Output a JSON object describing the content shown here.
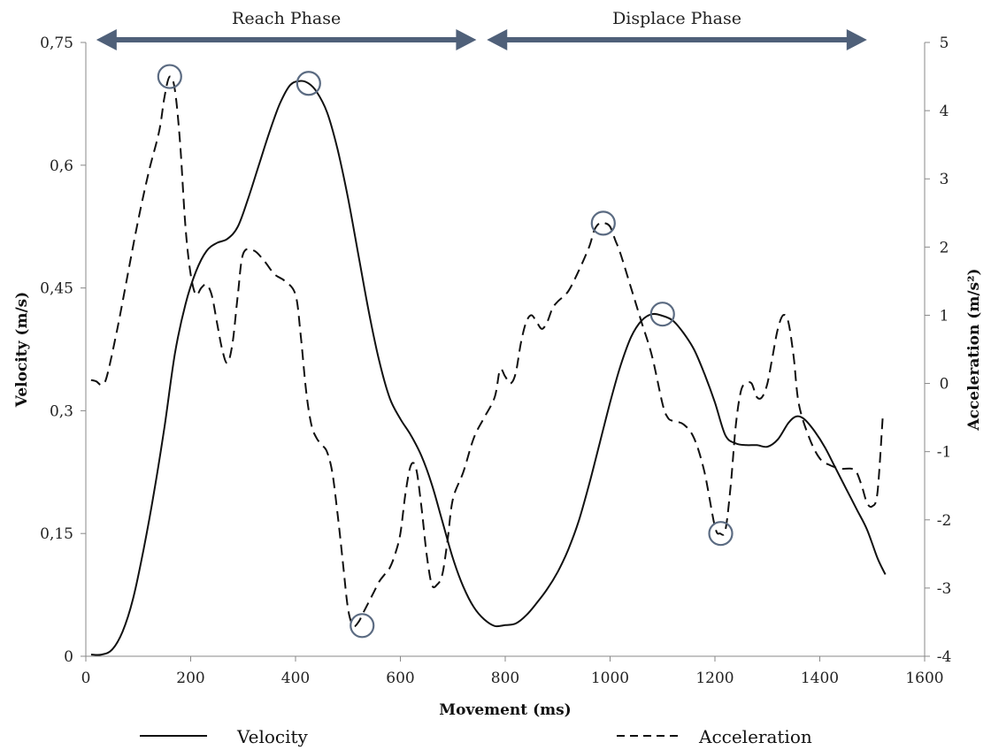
{
  "chart_data": {
    "type": "line",
    "xlabel": "Movement (ms)",
    "ylabel_left": "Velocity (m/s)",
    "ylabel_right": "Acceleration (m/s²)",
    "xlim": [
      0,
      1600
    ],
    "ylim_left": [
      0,
      0.75
    ],
    "ylim_right": [
      -4,
      5
    ],
    "x_ticks": [
      0,
      200,
      400,
      600,
      800,
      1000,
      1200,
      1400,
      1600
    ],
    "x_tick_labels": [
      "0",
      "200",
      "400",
      "600",
      "800",
      "1000",
      "1200",
      "1400",
      "1600"
    ],
    "y_left_ticks": [
      0,
      0.15,
      0.3,
      0.45,
      0.6,
      0.75
    ],
    "y_left_tick_labels": [
      "0",
      "0,15",
      "0,3",
      "0,45",
      "0,6",
      "0,75"
    ],
    "y_right_ticks": [
      -4,
      -3,
      -2,
      -1,
      0,
      1,
      2,
      3,
      4,
      5
    ],
    "y_right_tick_labels": [
      "-4",
      "-3",
      "-2",
      "-1",
      "0",
      "1",
      "2",
      "3",
      "4",
      "5"
    ],
    "grid": false,
    "legend_position": "bottom",
    "phases": [
      {
        "label": "Reach Phase",
        "x_start": 20,
        "x_end": 745
      },
      {
        "label": "Displace Phase",
        "x_start": 765,
        "x_end": 1490
      }
    ],
    "arrow_color": "#4f6079",
    "marker_color": "#5b6b82",
    "series": [
      {
        "name": "Velocity",
        "axis": "left",
        "style": "solid",
        "x": [
          10,
          30,
          50,
          70,
          90,
          110,
          130,
          150,
          170,
          190,
          210,
          230,
          250,
          270,
          290,
          310,
          330,
          350,
          370,
          390,
          410,
          425,
          440,
          460,
          480,
          500,
          520,
          540,
          560,
          580,
          600,
          620,
          640,
          660,
          680,
          700,
          720,
          740,
          760,
          780,
          800,
          820,
          840,
          860,
          880,
          900,
          920,
          940,
          960,
          980,
          1000,
          1020,
          1040,
          1060,
          1080,
          1100,
          1120,
          1140,
          1160,
          1180,
          1200,
          1220,
          1240,
          1260,
          1280,
          1300,
          1320,
          1340,
          1355,
          1370,
          1390,
          1410,
          1430,
          1450,
          1470,
          1490,
          1510,
          1525
        ],
        "values": [
          0.002,
          0.002,
          0.008,
          0.03,
          0.07,
          0.13,
          0.2,
          0.28,
          0.37,
          0.43,
          0.47,
          0.495,
          0.505,
          0.51,
          0.525,
          0.56,
          0.6,
          0.64,
          0.675,
          0.698,
          0.703,
          0.7,
          0.69,
          0.665,
          0.62,
          0.56,
          0.49,
          0.42,
          0.36,
          0.315,
          0.29,
          0.27,
          0.245,
          0.21,
          0.165,
          0.12,
          0.085,
          0.06,
          0.045,
          0.037,
          0.038,
          0.04,
          0.05,
          0.065,
          0.082,
          0.103,
          0.13,
          0.165,
          0.21,
          0.26,
          0.31,
          0.355,
          0.39,
          0.41,
          0.418,
          0.416,
          0.41,
          0.395,
          0.375,
          0.345,
          0.31,
          0.27,
          0.26,
          0.258,
          0.258,
          0.256,
          0.265,
          0.285,
          0.293,
          0.29,
          0.275,
          0.255,
          0.23,
          0.205,
          0.18,
          0.155,
          0.12,
          0.1
        ]
      },
      {
        "name": "Acceleration",
        "axis": "right",
        "style": "dashed",
        "x": [
          10,
          20,
          30,
          40,
          60,
          80,
          100,
          120,
          140,
          150,
          160,
          170,
          180,
          190,
          200,
          210,
          220,
          230,
          240,
          250,
          260,
          270,
          280,
          290,
          300,
          320,
          340,
          360,
          380,
          400,
          410,
          420,
          430,
          440,
          450,
          460,
          470,
          480,
          490,
          500,
          510,
          520,
          530,
          540,
          550,
          560,
          570,
          580,
          590,
          600,
          610,
          620,
          630,
          640,
          650,
          660,
          670,
          680,
          690,
          700,
          720,
          740,
          760,
          780,
          790,
          800,
          810,
          820,
          830,
          840,
          850,
          860,
          870,
          880,
          890,
          900,
          920,
          940,
          960,
          970,
          980,
          990,
          1000,
          1010,
          1020,
          1040,
          1060,
          1080,
          1100,
          1110,
          1120,
          1140,
          1160,
          1180,
          1200,
          1210,
          1220,
          1230,
          1240,
          1250,
          1260,
          1270,
          1280,
          1290,
          1300,
          1310,
          1320,
          1330,
          1340,
          1350,
          1360,
          1380,
          1400,
          1420,
          1440,
          1460,
          1470,
          1480,
          1490,
          1500,
          1510,
          1520
        ],
        "values": [
          0.05,
          0.03,
          -0.02,
          0.1,
          0.8,
          1.6,
          2.4,
          3.1,
          3.7,
          4.2,
          4.5,
          4.3,
          3.5,
          2.3,
          1.6,
          1.3,
          1.4,
          1.45,
          1.3,
          0.9,
          0.5,
          0.3,
          0.6,
          1.3,
          1.9,
          1.95,
          1.8,
          1.6,
          1.5,
          1.3,
          0.7,
          -0.1,
          -0.6,
          -0.8,
          -0.9,
          -1.0,
          -1.3,
          -1.9,
          -2.6,
          -3.3,
          -3.55,
          -3.5,
          -3.35,
          -3.2,
          -3.05,
          -2.9,
          -2.8,
          -2.7,
          -2.5,
          -2.2,
          -1.6,
          -1.2,
          -1.25,
          -1.8,
          -2.5,
          -2.95,
          -2.95,
          -2.8,
          -2.3,
          -1.7,
          -1.3,
          -0.8,
          -0.5,
          -0.2,
          0.2,
          0.1,
          0.0,
          0.15,
          0.6,
          0.9,
          1.0,
          0.9,
          0.8,
          0.9,
          1.1,
          1.2,
          1.35,
          1.65,
          2.0,
          2.25,
          2.35,
          2.35,
          2.3,
          2.1,
          1.9,
          1.4,
          0.9,
          0.4,
          -0.3,
          -0.5,
          -0.55,
          -0.6,
          -0.8,
          -1.3,
          -2.1,
          -2.2,
          -2.15,
          -1.5,
          -0.6,
          -0.1,
          0.0,
          0.0,
          -0.2,
          -0.2,
          0.0,
          0.4,
          0.8,
          1.0,
          0.9,
          0.4,
          -0.3,
          -0.8,
          -1.1,
          -1.2,
          -1.25,
          -1.25,
          -1.3,
          -1.5,
          -1.75,
          -1.8,
          -1.6,
          -0.5
        ]
      }
    ],
    "highlight_markers": [
      {
        "series": "Acceleration",
        "x": 160,
        "y": 4.5
      },
      {
        "series": "Velocity",
        "x": 425,
        "y": 0.7
      },
      {
        "series": "Acceleration",
        "x": 527,
        "y": -3.55
      },
      {
        "series": "Acceleration",
        "x": 987,
        "y": 2.35
      },
      {
        "series": "Velocity",
        "x": 1100,
        "y": 0.418
      },
      {
        "series": "Acceleration",
        "x": 1211,
        "y": -2.2
      }
    ]
  }
}
